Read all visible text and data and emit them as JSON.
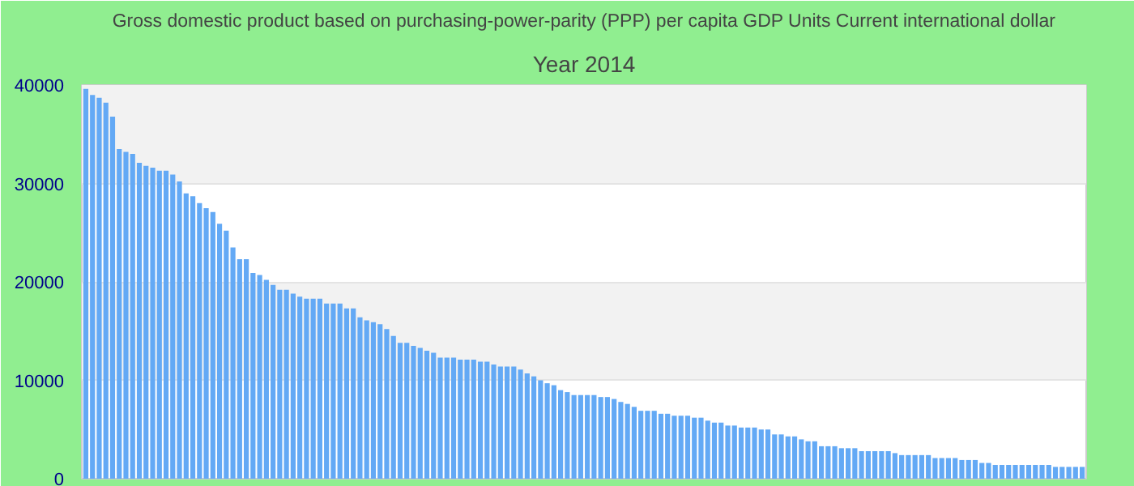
{
  "chart_data": {
    "type": "bar",
    "title": "Gross domestic product based on purchasing-power-parity (PPP) per capita GDP Units Current international dollar",
    "subtitle": "Year 2014",
    "categories": [
      null,
      null,
      null,
      null,
      null,
      null,
      null,
      null,
      null,
      null,
      null,
      null,
      null,
      null,
      null,
      null,
      null,
      null,
      null,
      null,
      null,
      null,
      null,
      null,
      null,
      null,
      null,
      null,
      null,
      null,
      null,
      null,
      null,
      null,
      null,
      null,
      null,
      null,
      null,
      null,
      null,
      null,
      null,
      null,
      null,
      null,
      null,
      null,
      null,
      null,
      null,
      null,
      null,
      null,
      null,
      null,
      null,
      null,
      null,
      null,
      null,
      null,
      null,
      null,
      null,
      null,
      null,
      null,
      null,
      null,
      null,
      null,
      null,
      null,
      null,
      null,
      null,
      null,
      null,
      null,
      null,
      null,
      null,
      null,
      null,
      null,
      null,
      null,
      null,
      null,
      null,
      null,
      null,
      null,
      null,
      null,
      null,
      null,
      null,
      null,
      null,
      null,
      null,
      null,
      null,
      null,
      null,
      null,
      null,
      null,
      null,
      null,
      null,
      null,
      null,
      null,
      null,
      null,
      null,
      null,
      null,
      null,
      null,
      null,
      null,
      null,
      null,
      null,
      null,
      null,
      null,
      null,
      null,
      null,
      null,
      null,
      null,
      null,
      null,
      null,
      null,
      null,
      null,
      null,
      null,
      null,
      null,
      null,
      null,
      null
    ],
    "values": [
      39600,
      39000,
      38700,
      38200,
      36800,
      33500,
      33200,
      33000,
      32100,
      31800,
      31600,
      31300,
      31300,
      30900,
      30200,
      29000,
      28700,
      28000,
      27500,
      27100,
      25900,
      25200,
      23500,
      22300,
      22300,
      20900,
      20700,
      20200,
      19700,
      19200,
      19200,
      18800,
      18500,
      18300,
      18300,
      18300,
      17800,
      17800,
      17800,
      17300,
      17300,
      16400,
      16100,
      15900,
      15700,
      15200,
      14500,
      13800,
      13800,
      13500,
      13300,
      13000,
      12800,
      12300,
      12300,
      12300,
      12100,
      12100,
      12100,
      11900,
      11900,
      11600,
      11400,
      11400,
      11400,
      11100,
      10700,
      10400,
      10000,
      9700,
      9500,
      9000,
      8800,
      8500,
      8500,
      8500,
      8500,
      8300,
      8300,
      8100,
      7800,
      7600,
      7300,
      6900,
      6900,
      6900,
      6600,
      6600,
      6400,
      6400,
      6400,
      6200,
      6200,
      5900,
      5700,
      5700,
      5400,
      5400,
      5200,
      5200,
      5200,
      5000,
      5000,
      4500,
      4500,
      4300,
      4300,
      4000,
      3800,
      3800,
      3300,
      3300,
      3300,
      3100,
      3100,
      3100,
      2800,
      2800,
      2800,
      2800,
      2800,
      2600,
      2400,
      2400,
      2400,
      2400,
      2400,
      2100,
      2100,
      2100,
      2100,
      1900,
      1900,
      1900,
      1600,
      1600,
      1400,
      1400,
      1400,
      1400,
      1400,
      1400,
      1400,
      1400,
      1400,
      1200,
      1200,
      1200,
      1200,
      1200
    ],
    "color": "#63a9f5",
    "ylim": [
      0,
      40000
    ],
    "yticks": [
      {
        "value": 0,
        "label": "0"
      },
      {
        "value": 10000,
        "label": "10000"
      },
      {
        "value": 20000,
        "label": "20000"
      },
      {
        "value": 30000,
        "label": "30000"
      },
      {
        "value": 40000,
        "label": "40000"
      }
    ],
    "grid": "y"
  }
}
